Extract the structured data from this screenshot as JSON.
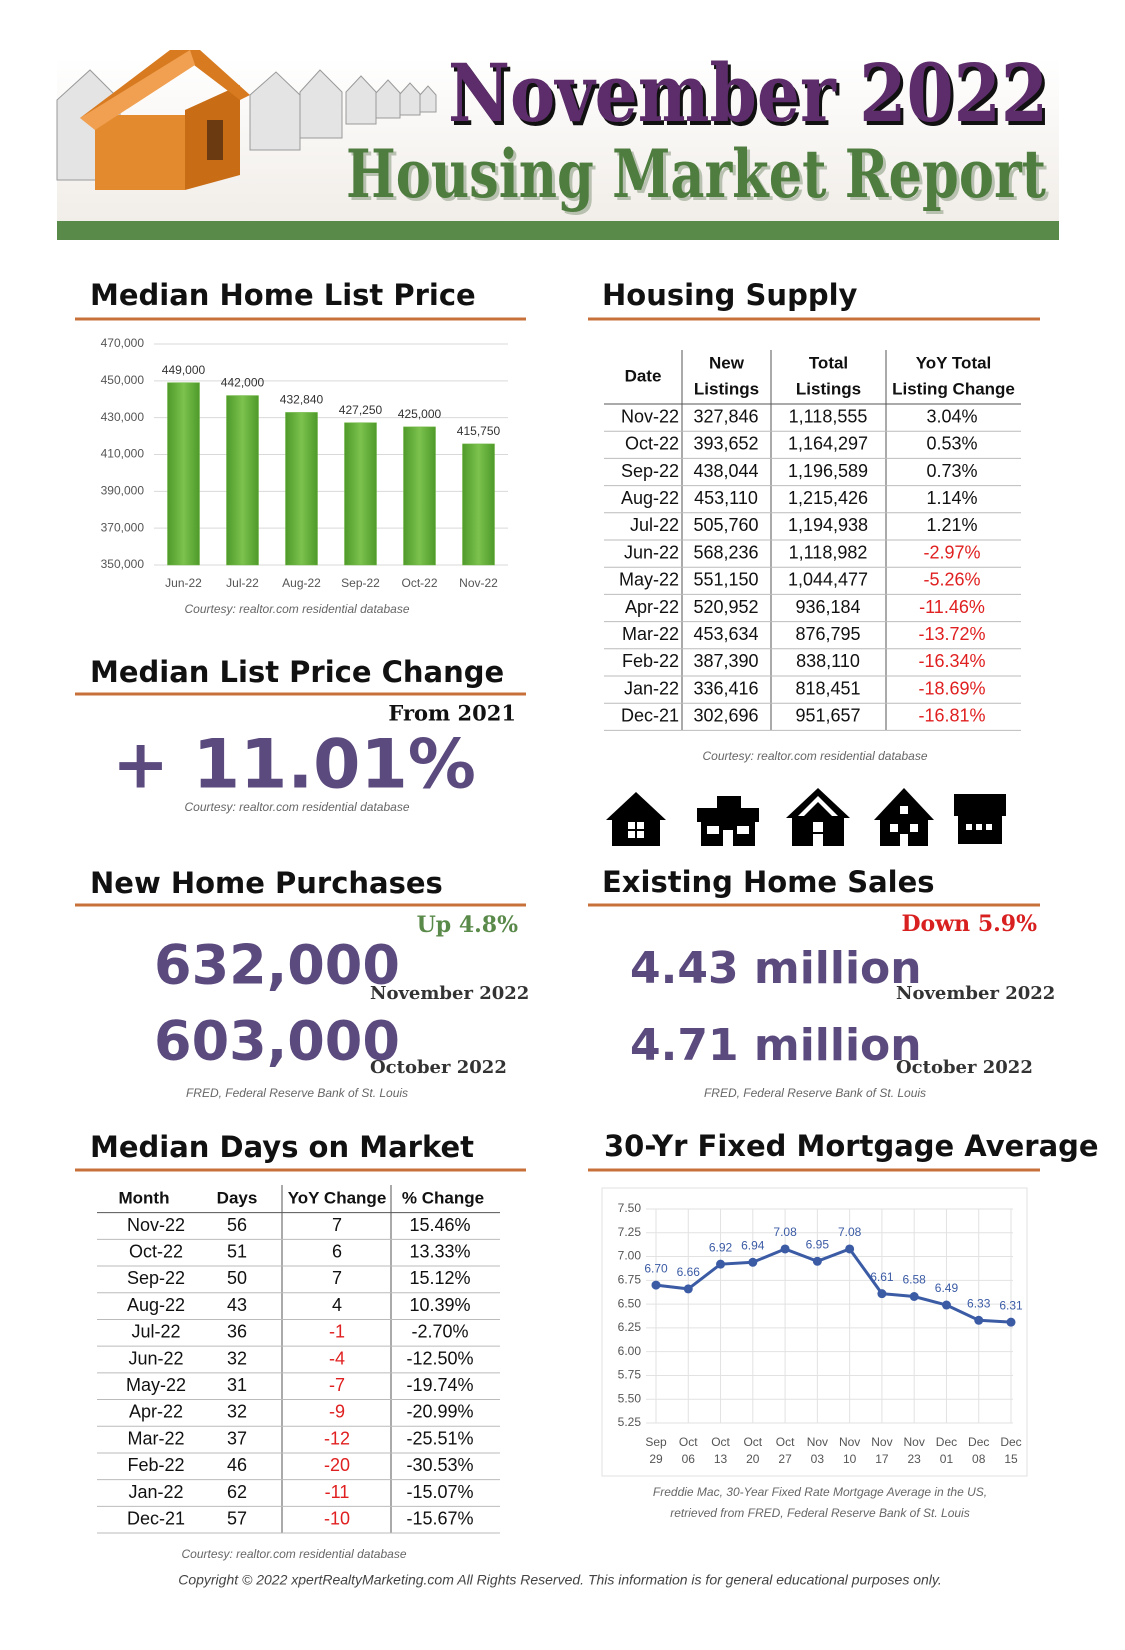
{
  "header": {
    "title": "November 2022",
    "subtitle": "Housing Market Report"
  },
  "chart_data": [
    {
      "type": "bar",
      "title": "Median Home List Price",
      "categories": [
        "Jun-22",
        "Jul-22",
        "Aug-22",
        "Sep-22",
        "Oct-22",
        "Nov-22"
      ],
      "values": [
        449000,
        442000,
        432840,
        427250,
        425000,
        415750
      ],
      "value_labels": [
        "449,000",
        "442,000",
        "432,840",
        "427,250",
        "425,000",
        "415,750"
      ],
      "color": "#6cb33e",
      "grid": true,
      "ylim": [
        350000,
        470000
      ],
      "yticks": [
        {
          "value": 350000,
          "label": "350,000"
        },
        {
          "value": 370000,
          "label": "370,000"
        },
        {
          "value": 390000,
          "label": "390,000"
        },
        {
          "value": 410000,
          "label": "410,000"
        },
        {
          "value": 430000,
          "label": "430,000"
        },
        {
          "value": 450000,
          "label": "450,000"
        },
        {
          "value": 470000,
          "label": "470,000"
        }
      ],
      "source": "Courtesy: realtor.com residential database"
    },
    {
      "type": "line",
      "title": "30-Yr Fixed Mortgage Average",
      "categories": [
        "Sep 29",
        "Oct 06",
        "Oct 13",
        "Oct 20",
        "Oct 27",
        "Nov 03",
        "Nov 10",
        "Nov 17",
        "Nov 23",
        "Dec 01",
        "Dec 08",
        "Dec 15"
      ],
      "values": [
        6.7,
        6.66,
        6.92,
        6.94,
        7.08,
        6.95,
        7.08,
        6.61,
        6.58,
        6.49,
        6.33,
        6.31
      ],
      "value_labels": [
        "6.70",
        "6.66",
        "6.92",
        "6.94",
        "7.08",
        "6.95",
        "7.08",
        "6.61",
        "6.58",
        "6.49",
        "6.33",
        "6.31"
      ],
      "color": "#3b5ba5",
      "grid": true,
      "ylim": [
        5.25,
        7.5
      ],
      "yticks": [
        {
          "value": 5.25,
          "label": "5.25"
        },
        {
          "value": 5.5,
          "label": "5.50"
        },
        {
          "value": 5.75,
          "label": "5.75"
        },
        {
          "value": 6,
          "label": "6.00"
        },
        {
          "value": 6.25,
          "label": "6.25"
        },
        {
          "value": 6.5,
          "label": "6.50"
        },
        {
          "value": 6.75,
          "label": "6.75"
        },
        {
          "value": 7,
          "label": "7.00"
        },
        {
          "value": 7.25,
          "label": "7.25"
        },
        {
          "value": 7.5,
          "label": "7.50"
        }
      ],
      "source": [
        "Freddie Mac, 30-Year Fixed Rate Mortgage Average in the US,",
        "retrieved from FRED, Federal Reserve Bank of St. Louis"
      ]
    }
  ],
  "list_price_change": {
    "title": "Median List Price Change",
    "basis": "From 2021",
    "value": "+ 11.01%",
    "source": "Courtesy: realtor.com residential database"
  },
  "housing_supply": {
    "title": "Housing Supply",
    "header": [
      [
        "Date"
      ],
      [
        "New",
        "Listings"
      ],
      [
        "Total",
        "Listings"
      ],
      [
        "YoY Total",
        "Listing Change"
      ]
    ],
    "rows": [
      [
        "Nov-22",
        "327,846",
        "1,118,555",
        "3.04%"
      ],
      [
        "Oct-22",
        "393,652",
        "1,164,297",
        "0.53%"
      ],
      [
        "Sep-22",
        "438,044",
        "1,196,589",
        "0.73%"
      ],
      [
        "Aug-22",
        "453,110",
        "1,215,426",
        "1.14%"
      ],
      [
        "Jul-22",
        "505,760",
        "1,194,938",
        "1.21%"
      ],
      [
        "Jun-22",
        "568,236",
        "1,118,982",
        "-2.97%"
      ],
      [
        "May-22",
        "551,150",
        "1,044,477",
        "-5.26%"
      ],
      [
        "Apr-22",
        "520,952",
        "936,184",
        "-11.46%"
      ],
      [
        "Mar-22",
        "453,634",
        "876,795",
        "-13.72%"
      ],
      [
        "Feb-22",
        "387,390",
        "838,110",
        "-16.34%"
      ],
      [
        "Jan-22",
        "336,416",
        "818,451",
        "-18.69%"
      ],
      [
        "Dec-21",
        "302,696",
        "951,657",
        "-16.81%"
      ]
    ],
    "negative_color": "#e02020",
    "source": "Courtesy: realtor.com residential database"
  },
  "new_home_purchases": {
    "title": "New Home Purchases",
    "change": "Up 4.8%",
    "change_color": "#5a8a4a",
    "figures": [
      {
        "value": "632,000",
        "period": "November 2022"
      },
      {
        "value": "603,000",
        "period": "October 2022"
      }
    ],
    "source": "FRED, Federal Reserve Bank of St. Louis"
  },
  "existing_home_sales": {
    "title": "Existing Home Sales",
    "change": "Down 5.9%",
    "change_color": "#d92020",
    "figures": [
      {
        "value": "4.43 million",
        "period": "November 2022"
      },
      {
        "value": "4.71 million",
        "period": "October 2022"
      }
    ],
    "source": "FRED, Federal Reserve Bank of St. Louis"
  },
  "days_on_market": {
    "title": "Median Days on Market",
    "header": [
      "Month",
      "Days",
      "YoY Change",
      "% Change"
    ],
    "rows": [
      [
        "Nov-22",
        "56",
        "7",
        "15.46%"
      ],
      [
        "Oct-22",
        "51",
        "6",
        "13.33%"
      ],
      [
        "Sep-22",
        "50",
        "7",
        "15.12%"
      ],
      [
        "Aug-22",
        "43",
        "4",
        "10.39%"
      ],
      [
        "Jul-22",
        "36",
        "-1",
        "-2.70%"
      ],
      [
        "Jun-22",
        "32",
        "-4",
        "-12.50%"
      ],
      [
        "May-22",
        "31",
        "-7",
        "-19.74%"
      ],
      [
        "Apr-22",
        "32",
        "-9",
        "-20.99%"
      ],
      [
        "Mar-22",
        "37",
        "-12",
        "-25.51%"
      ],
      [
        "Feb-22",
        "46",
        "-20",
        "-30.53%"
      ],
      [
        "Jan-22",
        "62",
        "-11",
        "-15.07%"
      ],
      [
        "Dec-21",
        "57",
        "-10",
        "-15.67%"
      ]
    ],
    "negative_color": "#e02020",
    "source": "Courtesy: realtor.com residential database"
  },
  "footer": "Copyright © 2022 xpertRealtyMarketing.com All Rights Reserved. This information is for general educational purposes only."
}
